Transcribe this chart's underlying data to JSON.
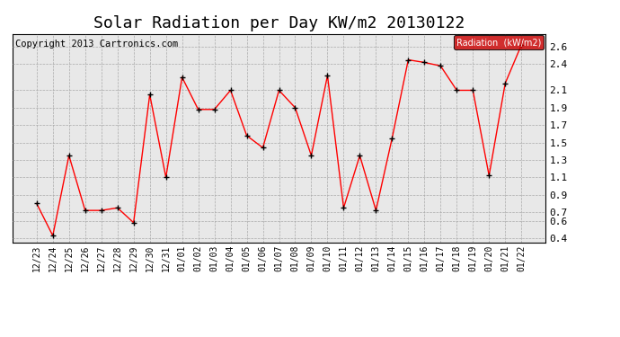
{
  "title": "Solar Radiation per Day KW/m2 20130122",
  "copyright": "Copyright 2013 Cartronics.com",
  "legend_label": "Radiation  (kW/m2)",
  "dates": [
    "12/23",
    "12/24",
    "12/25",
    "12/26",
    "12/27",
    "12/28",
    "12/29",
    "12/30",
    "12/31",
    "01/01",
    "01/02",
    "01/03",
    "01/04",
    "01/05",
    "01/06",
    "01/07",
    "01/08",
    "01/09",
    "01/10",
    "01/11",
    "01/12",
    "01/13",
    "01/14",
    "01/15",
    "01/16",
    "01/17",
    "01/18",
    "01/19",
    "01/20",
    "01/21",
    "01/22"
  ],
  "values": [
    0.8,
    0.43,
    1.35,
    0.72,
    0.72,
    0.75,
    0.58,
    2.05,
    1.1,
    2.25,
    1.88,
    1.88,
    2.1,
    1.58,
    1.44,
    2.1,
    1.9,
    1.35,
    2.27,
    0.75,
    1.35,
    0.72,
    1.55,
    2.45,
    2.42,
    2.38,
    2.1,
    2.1,
    1.12,
    2.18,
    2.62
  ],
  "ylim": [
    0.35,
    2.75
  ],
  "yticks": [
    0.4,
    0.6,
    0.7,
    0.9,
    1.1,
    1.3,
    1.5,
    1.7,
    1.9,
    2.1,
    2.4,
    2.6
  ],
  "line_color": "red",
  "background_color": "#ffffff",
  "plot_bg_color": "#e8e8e8",
  "grid_color": "#aaaaaa",
  "title_fontsize": 13,
  "copyright_fontsize": 7.5,
  "tick_fontsize": 7,
  "ytick_fontsize": 8,
  "legend_bg": "#cc0000",
  "legend_text_color": "white"
}
